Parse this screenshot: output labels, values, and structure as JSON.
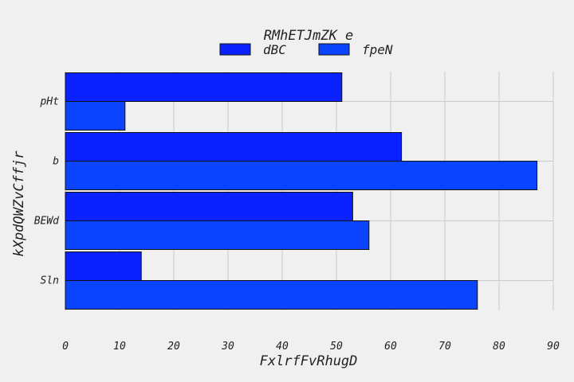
{
  "chart_data": {
    "type": "bar",
    "orientation": "horizontal",
    "title": "RMhETJmZK e",
    "xlabel": "FxlrfFvRhugD",
    "ylabel": "kXpdQWZvCffjr",
    "categories": [
      "pHt",
      "b",
      "BEWd",
      "Sln"
    ],
    "series": [
      {
        "name": "dBC",
        "values": [
          51,
          62,
          53,
          14
        ],
        "color": "#0a22ff"
      },
      {
        "name": "fpeN",
        "values": [
          11,
          87,
          56,
          76
        ],
        "color": "#0a44ff"
      }
    ],
    "xlim": [
      0,
      90
    ],
    "xticks": [
      0,
      10,
      20,
      30,
      40,
      50,
      60,
      70,
      80,
      90
    ],
    "grid": true,
    "legend_position": "top-center"
  }
}
